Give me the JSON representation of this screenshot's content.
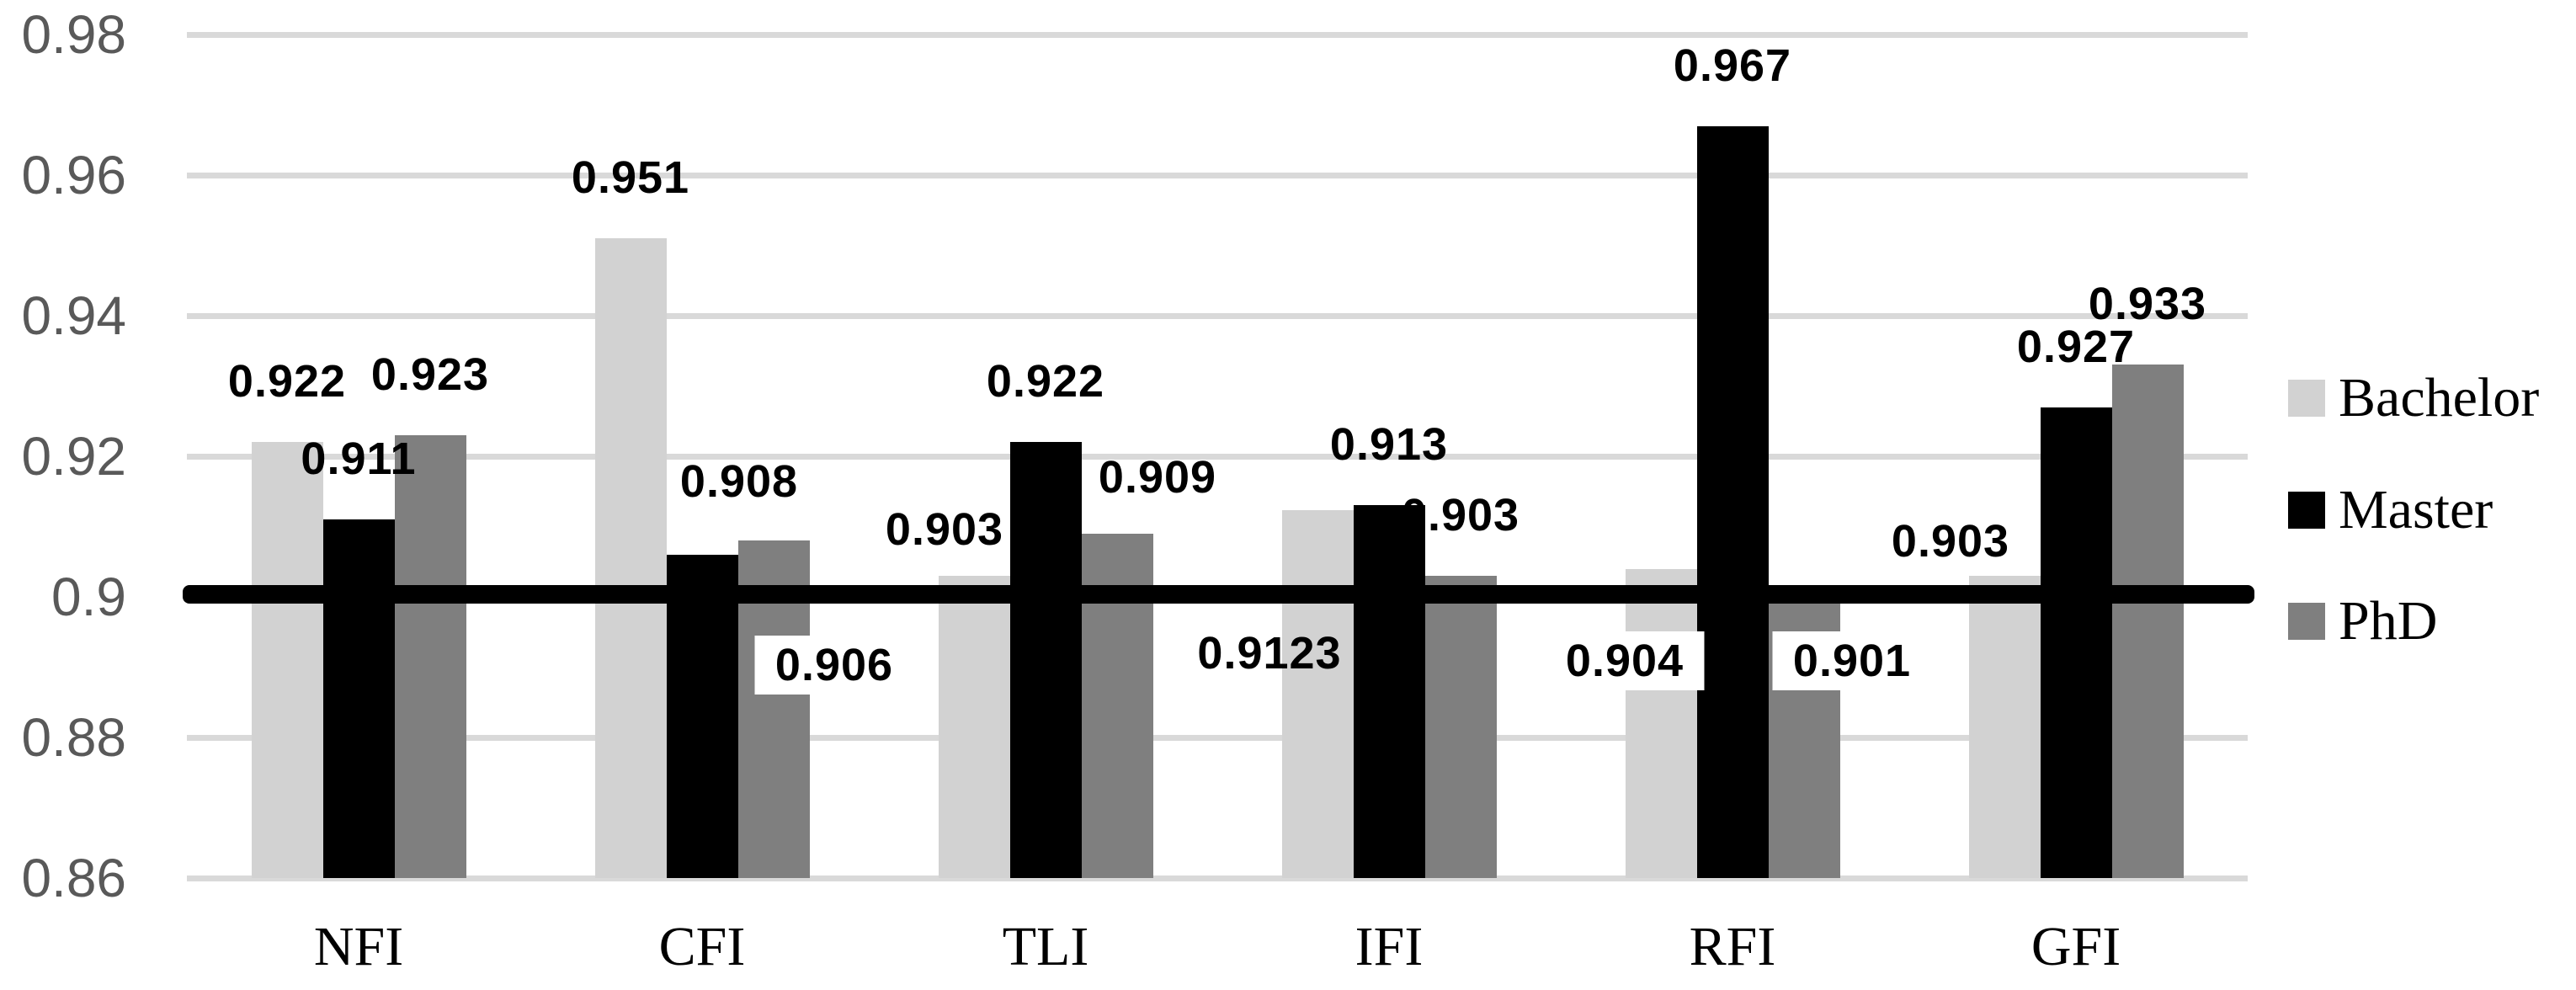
{
  "chart_data": {
    "type": "bar",
    "title": "",
    "categories": [
      "NFI",
      "CFI",
      "TLI",
      "IFI",
      "RFI",
      "GFI"
    ],
    "series": [
      {
        "name": "Bachelor",
        "color": "#d2d2d2",
        "values": [
          0.922,
          0.951,
          0.903,
          0.9123,
          0.904,
          0.903
        ],
        "labels": [
          "0.922",
          "0.951",
          "0.903",
          "0.9123",
          "0.904",
          "0.903"
        ]
      },
      {
        "name": "Master",
        "color": "#000000",
        "values": [
          0.911,
          0.906,
          0.922,
          0.913,
          0.967,
          0.927
        ],
        "labels": [
          "0.911",
          "0.906",
          "0.922",
          "0.913",
          "0.967",
          "0.927"
        ]
      },
      {
        "name": "PhD",
        "color": "#7f7f7f",
        "values": [
          0.923,
          0.908,
          0.909,
          0.903,
          0.901,
          0.933
        ],
        "labels": [
          "0.923",
          "0.908",
          "0.909",
          "0.903",
          "0.901",
          "0.933"
        ]
      }
    ],
    "y_axis": {
      "min": 0.86,
      "max": 0.98,
      "tick_labels": [
        "0.98",
        "0.96",
        "0.94",
        "0.92",
        "0.9",
        "0.88",
        "0.86"
      ],
      "tick_values": [
        0.98,
        0.96,
        0.94,
        0.92,
        0.9,
        0.88,
        0.86
      ],
      "text_color": "#595959"
    },
    "reference_line": {
      "value": 0.9,
      "color": "#000000"
    },
    "gridline_color": "#d9d9d9",
    "legend": {
      "position": "right",
      "entries": [
        "Bachelor",
        "Master",
        "PhD"
      ]
    },
    "label_overrides": {
      "0-2": {
        "x": 1122,
        "y": 629
      },
      "0-3": {
        "x": 1508,
        "y": 776,
        "bg": "under"
      },
      "0-4": {
        "x": 1930,
        "y": 785,
        "bg": "over"
      },
      "0-5": {
        "x": 2317,
        "y": 643
      },
      "1-1": {
        "x": 991,
        "y": 790,
        "bg": "over"
      },
      "2-1": {
        "x": 878,
        "y": 572
      },
      "2-2": {
        "x": 1375,
        "y": 567
      },
      "2-4": {
        "x": 2200,
        "y": 785,
        "bg": "over"
      }
    }
  }
}
